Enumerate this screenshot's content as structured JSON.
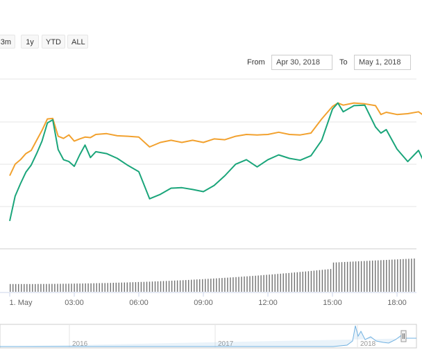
{
  "range_selector": {
    "buttons": [
      "3m",
      "1y",
      "YTD",
      "ALL"
    ]
  },
  "date_range": {
    "from_label": "From",
    "from_value": "Apr 30, 2018",
    "to_label": "To",
    "to_value": "May 1, 2018"
  },
  "colors": {
    "price_line": "#f2a12e",
    "second_line": "#1aa57a",
    "volume_bars": "#707070",
    "navigator_line": "#6fb0e0",
    "gridline": "#e6e6e6"
  },
  "chart_data": {
    "type": "line",
    "title": "",
    "xlabel": "",
    "ylabel": "",
    "grid": true,
    "x_ticks": [
      "1. May",
      "03:00",
      "06:00",
      "09:00",
      "12:00",
      "15:00",
      "18:00"
    ],
    "x_tick_hours": [
      0,
      3,
      6,
      9,
      12,
      15,
      18
    ],
    "x_range_hours": [
      0,
      19.3
    ],
    "y_range": [
      0,
      100
    ],
    "series": [
      {
        "x": [
          0,
          0.25,
          0.5,
          0.75,
          1.0,
          1.25,
          1.5,
          1.75,
          2.0,
          2.25,
          2.5,
          2.75,
          3.0,
          3.25,
          3.5,
          3.75,
          4.0,
          4.5,
          5.0,
          5.5,
          6.0,
          6.5,
          7.0,
          7.5,
          8.0,
          8.5,
          9.0,
          9.5,
          10.0,
          10.5,
          11.0,
          11.5,
          12.0,
          12.5,
          13.0,
          13.5,
          14.0,
          14.5,
          15.0,
          15.25,
          15.5,
          16.0,
          16.5,
          17.0,
          17.25,
          17.5,
          18.0,
          18.5,
          19.0,
          19.3
        ],
        "values": [
          36,
          44,
          48,
          52,
          55,
          62,
          70,
          78,
          79,
          65,
          64,
          66,
          62,
          63,
          65,
          64,
          67,
          67,
          66,
          65,
          65,
          57,
          61,
          62,
          61,
          62,
          61,
          63,
          63,
          65,
          67,
          66,
          67,
          68,
          67,
          66,
          68,
          78,
          88,
          90,
          89,
          90,
          90,
          88,
          82,
          83,
          82,
          82,
          84,
          80
        ]
      },
      {
        "x": [
          0,
          0.25,
          0.5,
          0.75,
          1.0,
          1.25,
          1.5,
          1.75,
          2.0,
          2.25,
          2.5,
          2.75,
          3.0,
          3.25,
          3.5,
          3.75,
          4.0,
          4.5,
          5.0,
          5.5,
          6.0,
          6.5,
          7.0,
          7.5,
          8.0,
          8.5,
          9.0,
          9.5,
          10.0,
          10.5,
          11.0,
          11.5,
          12.0,
          12.5,
          13.0,
          13.5,
          14.0,
          14.5,
          15.0,
          15.25,
          15.5,
          16.0,
          16.5,
          17.0,
          17.25,
          17.5,
          18.0,
          18.5,
          19.0,
          19.3
        ],
        "values": [
          2,
          20,
          30,
          38,
          44,
          52,
          62,
          75,
          78,
          55,
          48,
          46,
          43,
          51,
          59,
          49,
          54,
          52,
          49,
          43,
          39,
          18,
          22,
          26,
          27,
          25,
          24,
          28,
          36,
          44,
          48,
          42,
          48,
          51,
          49,
          47,
          51,
          62,
          86,
          90,
          84,
          88,
          89,
          72,
          68,
          70,
          56,
          46,
          55,
          44
        ]
      }
    ],
    "volume": {
      "x_start_hours": 0,
      "x_end_hours": 19.3,
      "values_start": 18,
      "values_end": 80
    },
    "navigator": {
      "x_ticks": [
        "2016",
        "2017",
        "2018"
      ]
    }
  }
}
